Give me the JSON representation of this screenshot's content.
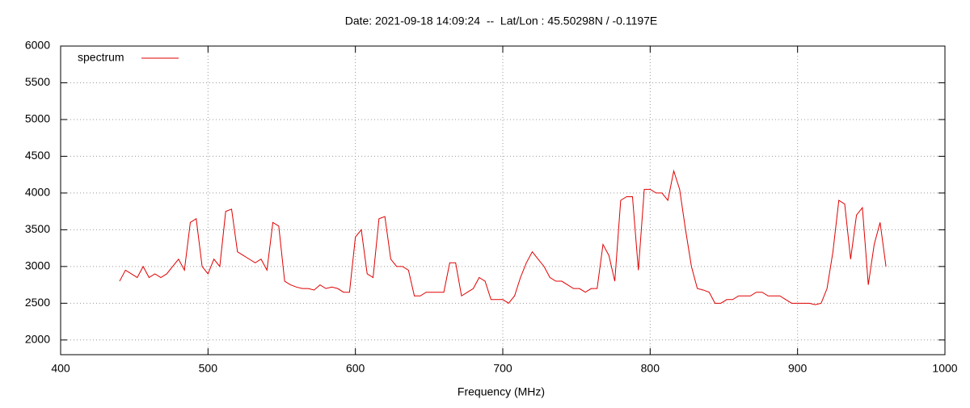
{
  "chart_data": {
    "type": "line",
    "title": "Date: 2021-09-18 14:09:24  --  Lat/Lon : 45.50298N / -0.1197E",
    "xlabel": "Frequency (MHz)",
    "x": [
      440,
      444,
      448,
      452,
      456,
      460,
      464,
      468,
      472,
      476,
      480,
      484,
      488,
      492,
      496,
      500,
      504,
      508,
      512,
      516,
      520,
      524,
      528,
      532,
      536,
      540,
      544,
      548,
      552,
      556,
      560,
      564,
      568,
      572,
      576,
      580,
      584,
      588,
      592,
      596,
      600,
      604,
      608,
      612,
      616,
      620,
      624,
      628,
      632,
      636,
      640,
      644,
      648,
      652,
      656,
      660,
      664,
      668,
      672,
      676,
      680,
      684,
      688,
      692,
      696,
      700,
      704,
      708,
      712,
      716,
      720,
      724,
      728,
      732,
      736,
      740,
      744,
      748,
      752,
      756,
      760,
      764,
      768,
      772,
      776,
      780,
      784,
      788,
      792,
      796,
      800,
      804,
      808,
      812,
      816,
      820,
      824,
      828,
      832,
      836,
      840,
      844,
      848,
      852,
      856,
      860,
      864,
      868,
      872,
      876,
      880,
      884,
      888,
      892,
      896,
      900,
      904,
      908,
      912,
      916,
      920,
      924,
      928,
      932,
      936,
      940,
      944,
      948,
      952,
      956,
      960
    ],
    "series": [
      {
        "name": "spectrum",
        "color": "#e00000",
        "values": [
          2800,
          2950,
          2900,
          2850,
          3000,
          2850,
          2900,
          2850,
          2900,
          3000,
          3100,
          2950,
          3600,
          3650,
          3000,
          2900,
          3100,
          3000,
          3750,
          3780,
          3200,
          3150,
          3100,
          3050,
          3100,
          2950,
          3600,
          3550,
          2800,
          2750,
          2720,
          2700,
          2700,
          2680,
          2750,
          2700,
          2720,
          2700,
          2650,
          2650,
          3400,
          3500,
          2900,
          2850,
          3650,
          3680,
          3100,
          3000,
          3000,
          2950,
          2600,
          2600,
          2650,
          2650,
          2650,
          2650,
          3050,
          3050,
          2600,
          2650,
          2700,
          2850,
          2800,
          2550,
          2550,
          2550,
          2500,
          2600,
          2850,
          3050,
          3200,
          3100,
          3000,
          2850,
          2800,
          2800,
          2750,
          2700,
          2700,
          2650,
          2700,
          2700,
          3300,
          3150,
          2800,
          3900,
          3950,
          3950,
          2950,
          4050,
          4050,
          4000,
          4000,
          3900,
          4300,
          4050,
          3500,
          3000,
          2700,
          2680,
          2650,
          2500,
          2500,
          2550,
          2550,
          2600,
          2600,
          2600,
          2650,
          2650,
          2600,
          2600,
          2600,
          2550,
          2500,
          2500,
          2500,
          2500,
          2480,
          2500,
          2700,
          3200,
          3900,
          3850,
          3100,
          3700,
          3800,
          2750,
          3300,
          3600,
          3000
        ]
      }
    ],
    "xlim": [
      400,
      1000
    ],
    "xticks": [
      400,
      500,
      600,
      700,
      800,
      900,
      1000
    ],
    "ylim": [
      1800,
      6000
    ],
    "yticks": [
      2000,
      2500,
      3000,
      3500,
      4000,
      4500,
      5000,
      5500,
      6000
    ],
    "grid": true,
    "legend": "top-left"
  }
}
